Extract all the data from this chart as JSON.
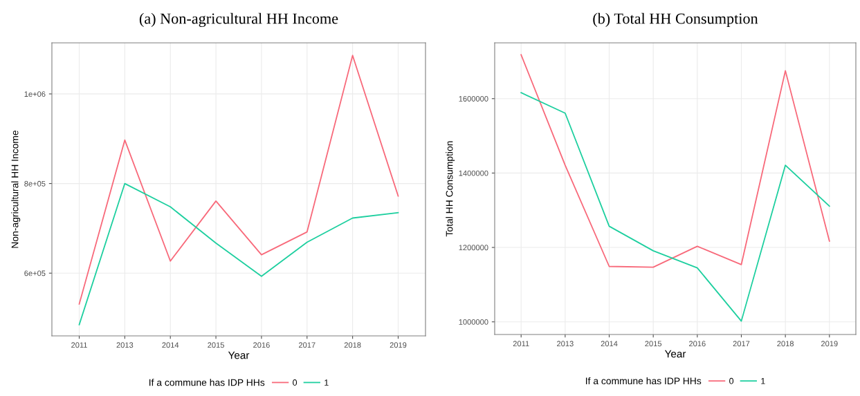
{
  "chart_data": [
    {
      "type": "line",
      "title": "(a) Non-agricultural HH Income",
      "xlabel": "Year",
      "ylabel": "Non-agricultural HH Income",
      "legend_title": "If a commune has IDP HHs",
      "categories": [
        "2011",
        "2013",
        "2014",
        "2015",
        "2016",
        "2017",
        "2018",
        "2019"
      ],
      "series": [
        {
          "name": "0",
          "color": "#f8697a",
          "values": [
            531000,
            897000,
            627000,
            761000,
            641000,
            692000,
            1086000,
            772000
          ]
        },
        {
          "name": "1",
          "color": "#1dcf9f",
          "values": [
            485000,
            800000,
            748000,
            667000,
            593000,
            669000,
            723000,
            735000
          ]
        }
      ],
      "ylim": [
        460000,
        1114000
      ],
      "yticks": [
        {
          "value": 600000,
          "label": "6e+05"
        },
        {
          "value": 800000,
          "label": "8e+05"
        },
        {
          "value": 1000000,
          "label": "1e+06"
        }
      ],
      "grid": true,
      "legend": "bottom",
      "marker": "none",
      "line_style": "solid"
    },
    {
      "type": "line",
      "title": "(b) Total HH Consumption",
      "xlabel": "Year",
      "ylabel": "Total HH Consumption",
      "legend_title": "If a commune has IDP HHs",
      "categories": [
        "2011",
        "2013",
        "2014",
        "2015",
        "2016",
        "2017",
        "2018",
        "2019"
      ],
      "series": [
        {
          "name": "0",
          "color": "#f8697a",
          "values": [
            1718000,
            1421000,
            1149000,
            1147000,
            1203000,
            1154000,
            1675000,
            1217000
          ]
        },
        {
          "name": "1",
          "color": "#1dcf9f",
          "values": [
            1616000,
            1561000,
            1257000,
            1191000,
            1145000,
            1002000,
            1421000,
            1311000
          ]
        }
      ],
      "ylim": [
        966000,
        1750000
      ],
      "yticks": [
        1000000,
        1200000,
        1400000,
        1600000
      ],
      "grid": true,
      "legend": "bottom",
      "marker": "none",
      "line_style": "solid"
    }
  ]
}
